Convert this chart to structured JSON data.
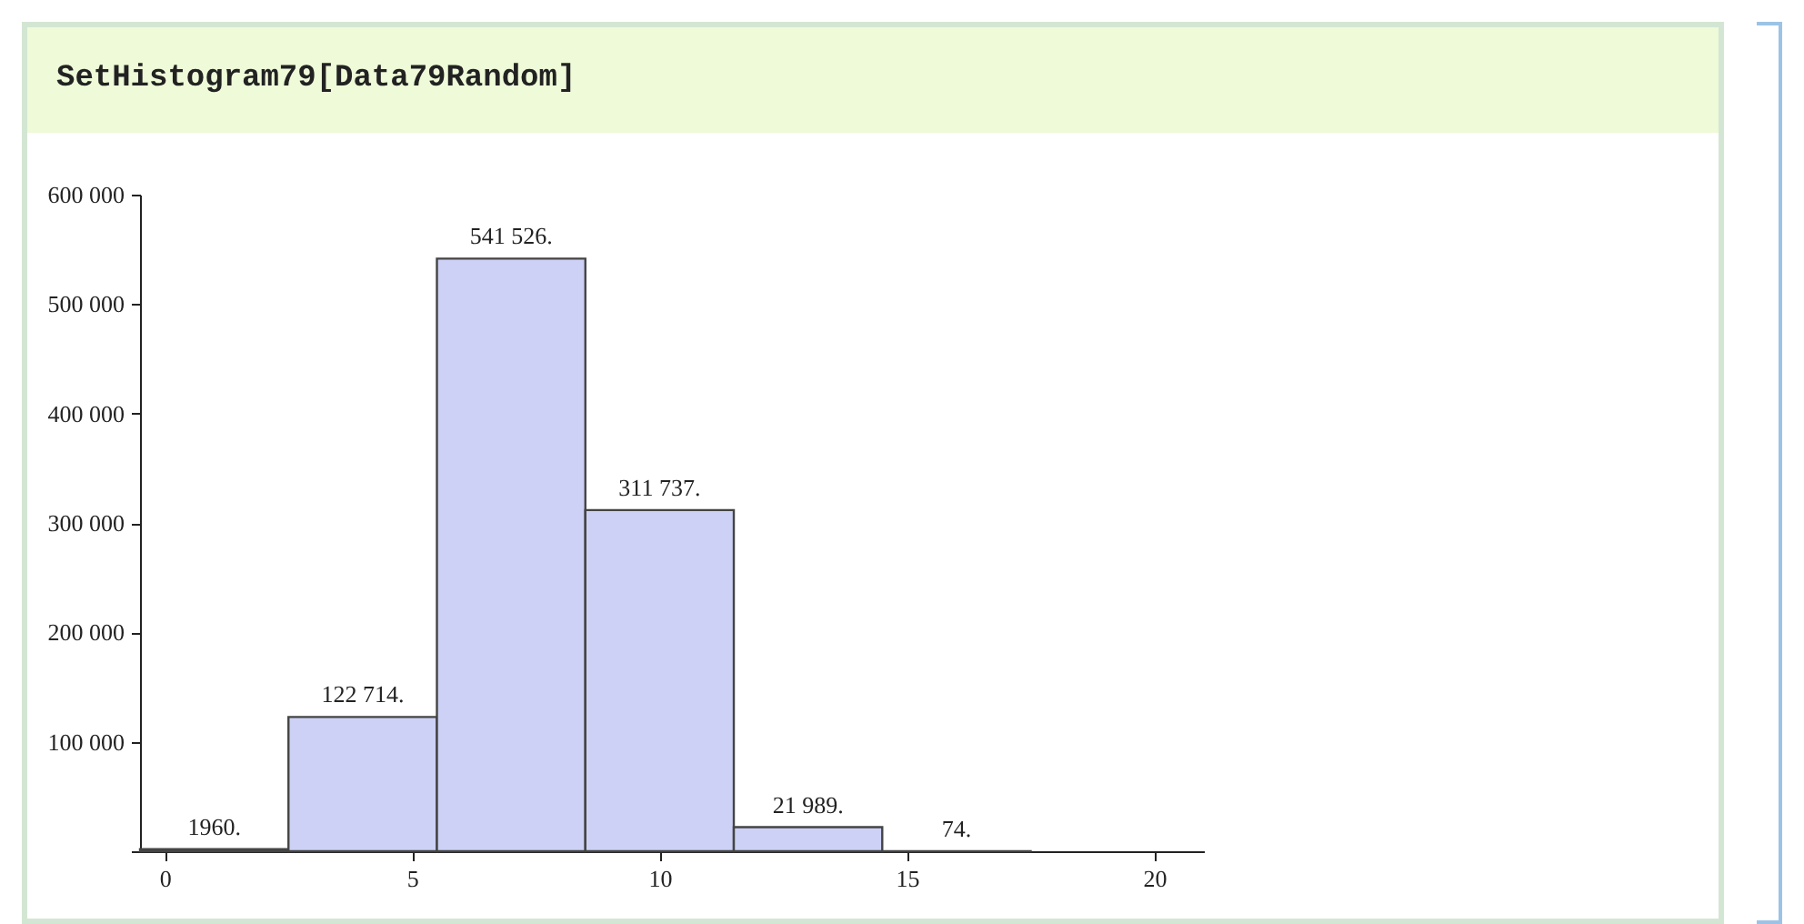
{
  "chart_data": {
    "type": "histogram",
    "title": "SetHistogram79[Data79Random]",
    "bins": [
      -0.5,
      2.5,
      5.5,
      8.5,
      11.5,
      14.5,
      17.5
    ],
    "values": [
      1960,
      122714,
      541526,
      311737,
      21989,
      74
    ],
    "value_labels": [
      "1960.",
      "122 714.",
      "541 526.",
      "311 737.",
      "21 989.",
      "74."
    ],
    "color": "#ccd1f5",
    "xlim": [
      -0.5,
      21
    ],
    "xticks": [
      0,
      5,
      10,
      15,
      20
    ],
    "ylim": [
      0,
      600000
    ],
    "yticks": [
      {
        "value": 0,
        "label": null
      },
      {
        "value": 100000,
        "label": "100 000"
      },
      {
        "value": 200000,
        "label": "200 000"
      },
      {
        "value": 300000,
        "label": "300 000"
      },
      {
        "value": 400000,
        "label": "400 000"
      },
      {
        "value": 500000,
        "label": "500 000"
      },
      {
        "value": 600000,
        "label": "600 000"
      }
    ],
    "grid": false
  }
}
